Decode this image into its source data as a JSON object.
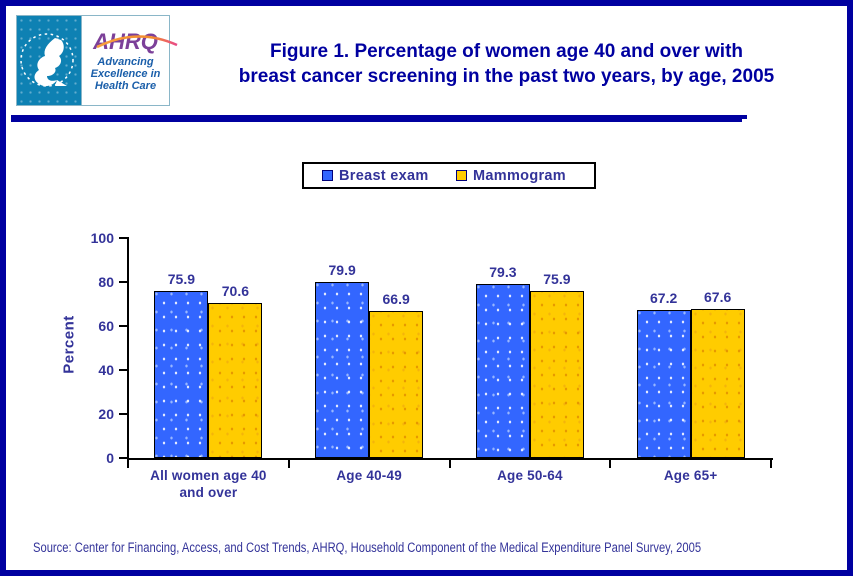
{
  "header": {
    "title_line1": "Figure 1. Percentage of women age 40 and over with",
    "title_line2": "breast cancer screening in the past two years, by age, 2005",
    "logo": {
      "ahrq_text": "AHRQ",
      "tagline": "Advancing\nExcellence in\nHealth Care"
    }
  },
  "chart_data": {
    "type": "bar",
    "title": "Figure 1. Percentage of women age 40 and over with breast cancer screening in the past two years, by age, 2005",
    "categories": [
      "All women age 40\nand over",
      "Age 40-49",
      "Age 50-64",
      "Age 65+"
    ],
    "series": [
      {
        "name": "Breast exam",
        "color": "#3366FF",
        "values": [
          75.9,
          79.9,
          79.3,
          67.2
        ]
      },
      {
        "name": "Mammogram",
        "color": "#FFCC00",
        "values": [
          70.6,
          66.9,
          75.9,
          67.6
        ]
      }
    ],
    "xlabel": "",
    "ylabel": "Percent",
    "ylim": [
      0,
      100
    ],
    "yticks": [
      0,
      20,
      40,
      60,
      80,
      100
    ],
    "grid": false,
    "legend_position": "top-center"
  },
  "source": "Source: Center for Financing, Access, and Cost Trends, AHRQ, Household Component of the Medical Expenditure Panel Survey, 2005",
  "colors": {
    "page_border": "#0000A0",
    "title_text": "#0000A0",
    "axis_text": "#333399",
    "bar_blue": "#3366FF",
    "bar_yellow": "#FFCC00",
    "logo_teal": "#0E81B3",
    "ahrq_purple": "#7C4099",
    "tagline_blue": "#1B5FAA"
  }
}
